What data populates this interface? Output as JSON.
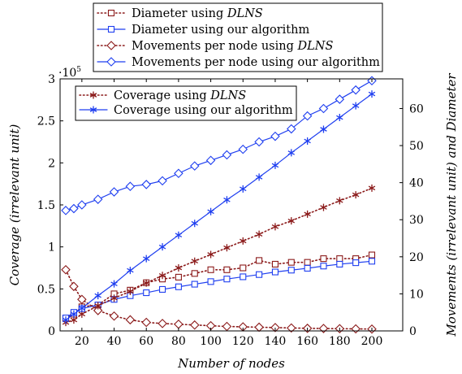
{
  "chart_data": {
    "type": "line",
    "x": [
      10,
      15,
      20,
      30,
      40,
      50,
      60,
      70,
      80,
      90,
      100,
      110,
      120,
      130,
      140,
      150,
      160,
      170,
      180,
      190,
      200
    ],
    "xlabel": "Number of nodes",
    "xlim": [
      10,
      220
    ],
    "x_ticks": [
      20,
      40,
      60,
      80,
      100,
      120,
      140,
      160,
      180,
      200
    ],
    "left_axis": {
      "label": "Coverage (irrelevant unit)",
      "lim": [
        0,
        3
      ],
      "ticks": [
        "0",
        "0.5",
        "1",
        "1.5",
        "2",
        "2.5",
        "3"
      ],
      "multiplier": "·10^5"
    },
    "right_axis": {
      "label": "Movements (irrelevant unit) and Diameter",
      "lim": [
        0,
        68
      ],
      "ticks": [
        "0",
        "10",
        "20",
        "30",
        "40",
        "50",
        "60"
      ]
    },
    "series": [
      {
        "name": "Diameter using DLNS",
        "axis": "right",
        "color": "#8b1a1a",
        "style": "dotted",
        "marker": "square",
        "values": [
          3.5,
          4.5,
          6.5,
          7,
          10,
          11,
          13,
          14,
          14.5,
          15.5,
          16.5,
          16.5,
          17,
          19,
          18,
          18.5,
          18.5,
          19.5,
          19.5,
          19.5,
          20.5
        ]
      },
      {
        "name": "Diameter using our algorithm",
        "axis": "right",
        "color": "#1f3ff0",
        "style": "solid",
        "marker": "square",
        "values": [
          3.5,
          5,
          6,
          7,
          8.5,
          9.5,
          10.3,
          11.2,
          11.9,
          12.6,
          13.3,
          14,
          14.6,
          15.2,
          15.9,
          16.4,
          16.9,
          17.5,
          18,
          18.4,
          18.8
        ]
      },
      {
        "name": "Movements per node using DLNS",
        "axis": "right",
        "color": "#8b1a1a",
        "style": "dotted",
        "marker": "diamond",
        "values": [
          16.5,
          12,
          8.5,
          5.5,
          4,
          3,
          2.3,
          2,
          1.8,
          1.6,
          1.4,
          1.2,
          1.1,
          1.0,
          0.9,
          0.8,
          0.7,
          0.65,
          0.6,
          0.55,
          0.5
        ]
      },
      {
        "name": "Movements per node using our algorithm",
        "axis": "right",
        "color": "#1f3ff0",
        "style": "solid",
        "marker": "diamond",
        "values": [
          32.5,
          33,
          34,
          35.5,
          37.5,
          39,
          39.5,
          40.5,
          42.5,
          44.5,
          46,
          47.5,
          49,
          51,
          52.5,
          54.5,
          58,
          60,
          62.5,
          65,
          67.5
        ]
      },
      {
        "name": "Coverage using DLNS",
        "axis": "left",
        "color": "#8b1a1a",
        "style": "dotted",
        "marker": "star",
        "values": [
          0.1,
          0.13,
          0.2,
          0.3,
          0.39,
          0.47,
          0.57,
          0.66,
          0.75,
          0.83,
          0.91,
          0.99,
          1.07,
          1.15,
          1.24,
          1.31,
          1.39,
          1.47,
          1.55,
          1.62,
          1.7
        ]
      },
      {
        "name": "Coverage using our algorithm",
        "axis": "left",
        "color": "#1f3ff0",
        "style": "solid",
        "marker": "star",
        "values": [
          0.13,
          0.2,
          0.27,
          0.42,
          0.56,
          0.72,
          0.86,
          1.0,
          1.14,
          1.28,
          1.42,
          1.56,
          1.69,
          1.83,
          1.97,
          2.12,
          2.26,
          2.4,
          2.54,
          2.68,
          2.82
        ]
      }
    ],
    "legend_top": {
      "placement": "top-center, outside plot",
      "entries": [
        {
          "label": "Diameter using ",
          "italic": "DLNS"
        },
        {
          "label": "Diameter using our algorithm",
          "italic": ""
        },
        {
          "label": "Movements per node using ",
          "italic": "DLNS"
        },
        {
          "label": "Movements per node using our algorithm",
          "italic": ""
        }
      ]
    },
    "legend_inner": {
      "placement": "top-left, inside plot",
      "entries": [
        {
          "label": "Coverage using ",
          "italic": "DLNS"
        },
        {
          "label": "Coverage using our algorithm",
          "italic": ""
        }
      ]
    }
  }
}
